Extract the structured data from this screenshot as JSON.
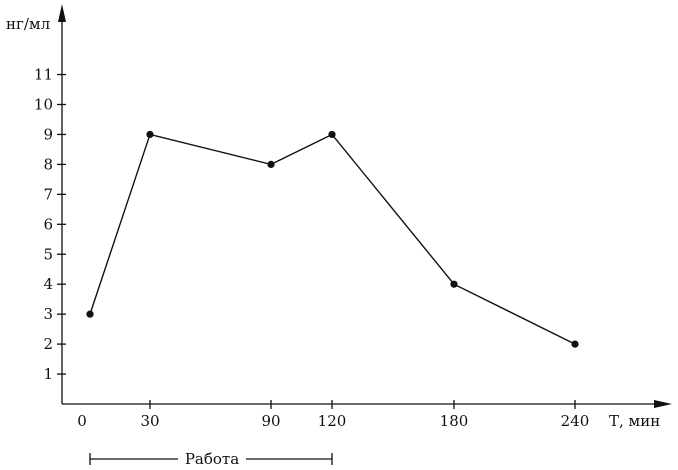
{
  "chart_data": {
    "type": "line",
    "ylabel": "нг/мл",
    "xlabel": "Т, мин",
    "y_ticks": [
      1,
      2,
      3,
      4,
      5,
      6,
      7,
      8,
      9,
      10,
      11
    ],
    "x_ticks": [
      {
        "value": 0,
        "label": "0"
      },
      {
        "value": 30,
        "label": "30"
      },
      {
        "value": 90,
        "label": "90"
      },
      {
        "value": 120,
        "label": "120"
      },
      {
        "value": 180,
        "label": "180"
      },
      {
        "value": 240,
        "label": "240"
      }
    ],
    "x": [
      0,
      30,
      90,
      120,
      180,
      240
    ],
    "y": [
      3,
      9,
      8,
      9,
      4,
      2
    ],
    "work_period": {
      "label": "Работа",
      "start": 0,
      "end": 120
    },
    "grid": false
  }
}
